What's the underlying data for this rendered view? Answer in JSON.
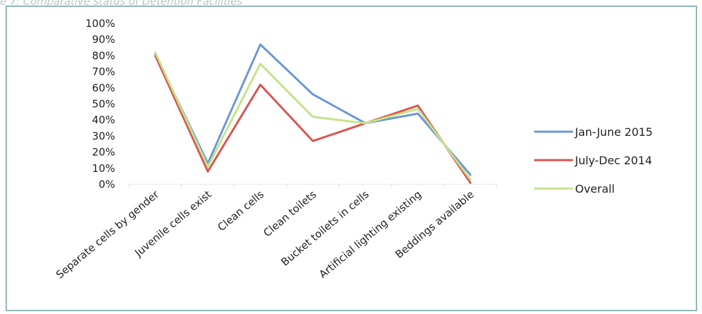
{
  "caption": "e 7: Comparative status of Detention Facilities",
  "chart_data": {
    "type": "line",
    "title": "",
    "xlabel": "",
    "ylabel": "",
    "ylim": [
      0,
      100
    ],
    "y_ticks": [
      "0%",
      "10%",
      "20%",
      "30%",
      "40%",
      "50%",
      "60%",
      "70%",
      "80%",
      "90%",
      "100%"
    ],
    "grid": false,
    "legend_position": "right",
    "categories": [
      "Separate cells by gender",
      "Juvenile cells exist",
      "Clean cells",
      "Clean toilets",
      "Bucket toilets in cells",
      "Artificial lighting existing",
      "Beddings available"
    ],
    "series": [
      {
        "name": "Jan-June 2015",
        "color": "#6a96d6",
        "values": [
          81,
          13,
          87,
          56,
          38,
          44,
          6
        ]
      },
      {
        "name": "July-Dec 2014",
        "color": "#d9534f",
        "values": [
          80,
          8,
          62,
          27,
          38,
          49,
          1
        ]
      },
      {
        "name": "Overall",
        "color": "#c4e38a",
        "values": [
          82,
          11,
          75,
          42,
          38,
          47,
          3
        ]
      }
    ]
  }
}
